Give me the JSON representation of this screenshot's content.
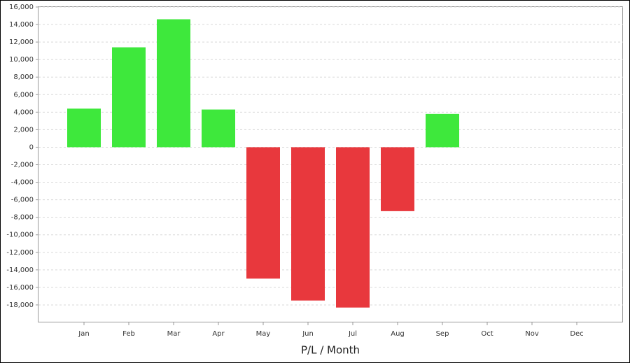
{
  "chart_data": {
    "type": "bar",
    "x_label": "P/L / Month",
    "categories": [
      "Jan",
      "Feb",
      "Mar",
      "Apr",
      "May",
      "Jun",
      "Jul",
      "Aug",
      "Sep",
      "Oct",
      "Nov",
      "Dec"
    ],
    "values": [
      4400,
      11400,
      14600,
      4300,
      -15000,
      -17500,
      -18300,
      -7300,
      3800,
      null,
      null,
      null
    ],
    "positive_color": "#3ee83c",
    "negative_color": "#e8383d",
    "ylim": [
      -20000,
      16000
    ],
    "yticks": [
      {
        "value": -18000,
        "label": "-18,000"
      },
      {
        "value": -16000,
        "label": "-16,000"
      },
      {
        "value": -14000,
        "label": "-14,000"
      },
      {
        "value": -12000,
        "label": "-12,000"
      },
      {
        "value": -10000,
        "label": "-10,000"
      },
      {
        "value": -8000,
        "label": "-8,000"
      },
      {
        "value": -6000,
        "label": "-6,000"
      },
      {
        "value": -4000,
        "label": "-4,000"
      },
      {
        "value": -2000,
        "label": "-2,000"
      },
      0,
      {
        "value": 2000,
        "label": "2,000"
      },
      {
        "value": 4000,
        "label": "4,000"
      },
      {
        "value": 6000,
        "label": "6,000"
      },
      {
        "value": 8000,
        "label": "8,000"
      },
      {
        "value": 10000,
        "label": "10,000"
      },
      {
        "value": 12000,
        "label": "12,000"
      },
      {
        "value": 14000,
        "label": "14,000"
      },
      {
        "value": 16000,
        "label": "16,000"
      }
    ],
    "grid": true
  }
}
